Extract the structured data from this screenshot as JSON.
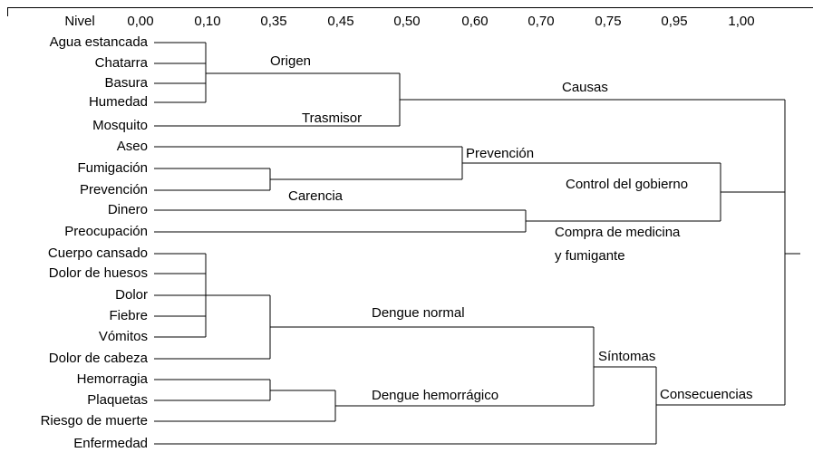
{
  "axis": {
    "labels": [
      "Nivel",
      "0,00",
      "0,10",
      "0,35",
      "0,45",
      "0,50",
      "0,60",
      "0,70",
      "0,75",
      "0,95",
      "1,00"
    ]
  },
  "leaves": [
    "Agua estancada",
    "Chatarra",
    "Basura",
    "Humedad",
    "Mosquito",
    "Aseo",
    "Fumigación",
    "Prevención",
    "Dinero",
    "Preocupación",
    "Cuerpo cansado",
    "Dolor de huesos",
    "Dolor",
    "Fiebre",
    "Vómitos",
    "Dolor de cabeza",
    "Hemorragia",
    "Plaquetas",
    "Riesgo de muerte",
    "Enfermedad"
  ],
  "clusters": [
    "Origen",
    "Trasmisor",
    "Causas",
    "Prevención",
    "Control del gobierno",
    "Carencia",
    "Compra de medicina",
    "y fumigante",
    "Dengue normal",
    "Síntomas",
    "Dengue hemorrágico",
    "Consecuencias"
  ]
}
